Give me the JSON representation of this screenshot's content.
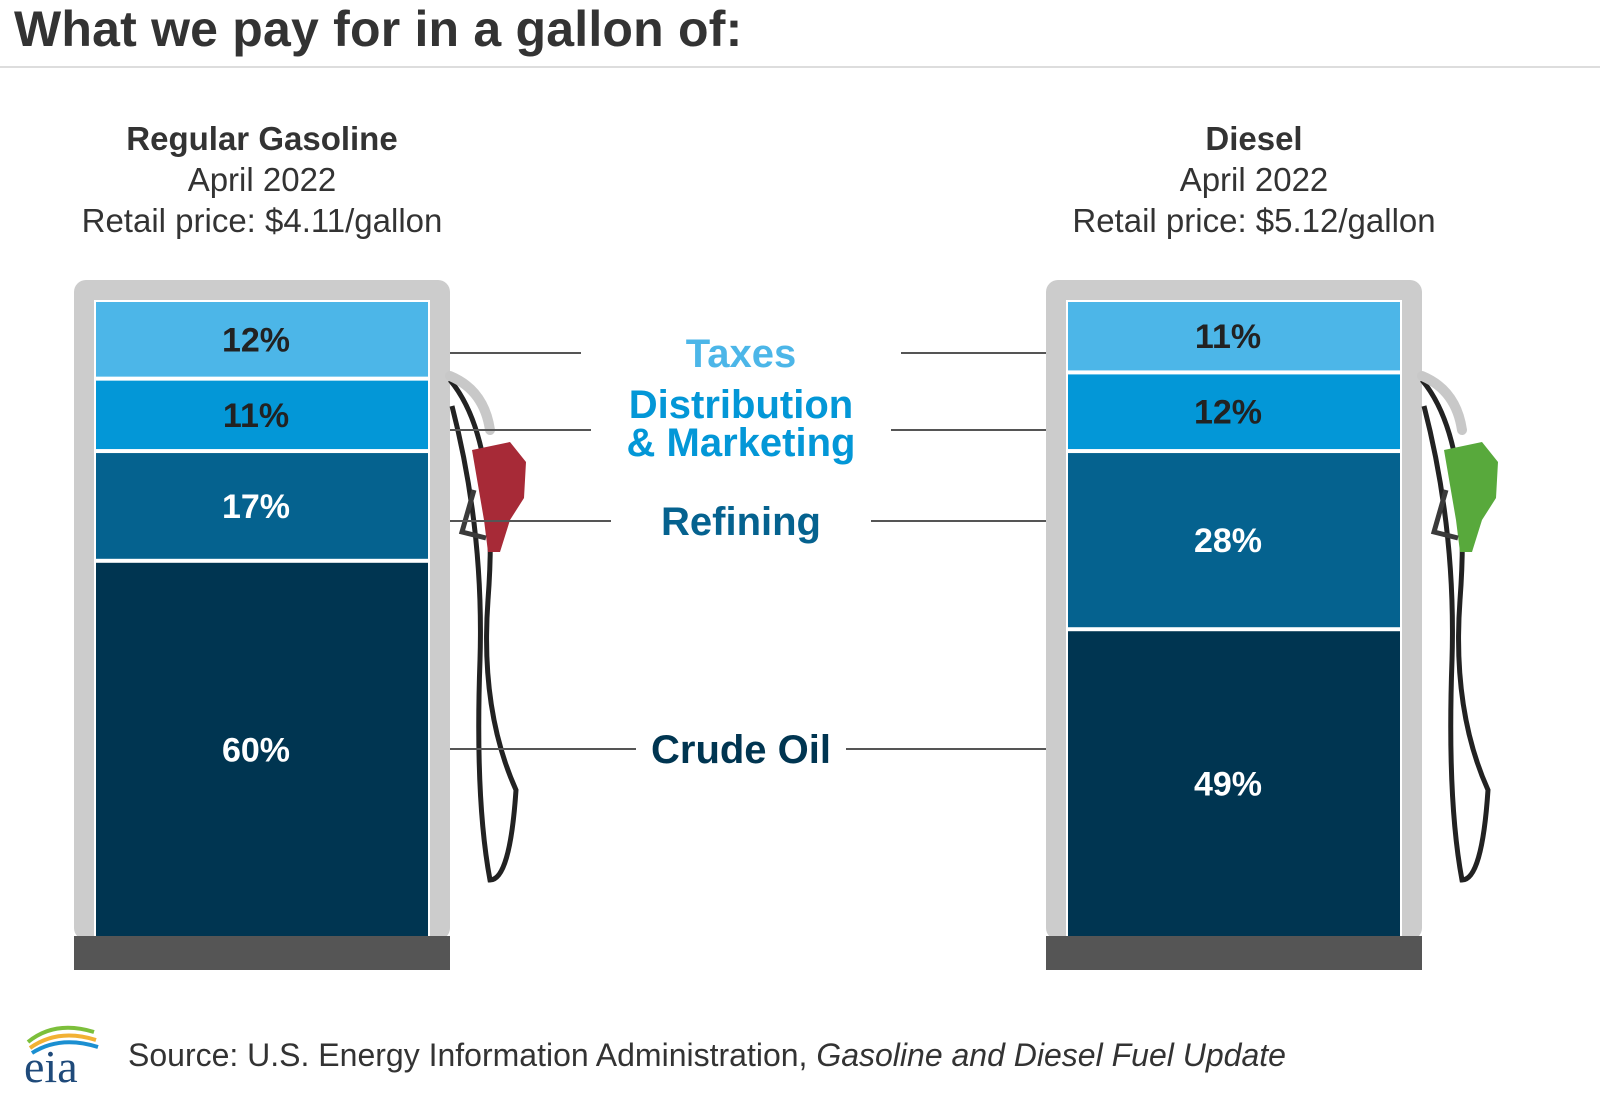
{
  "title": "What we pay for in a gallon of:",
  "colors": {
    "taxes": "#4cb6e8",
    "distribution": "#0397d7",
    "refining": "#05628f",
    "crude": "#003551",
    "pump_frame": "#cccccc",
    "pump_base": "#555555",
    "gas_nozzle": "#a72a37",
    "diesel_nozzle": "#58a93c"
  },
  "chart_data": {
    "type": "bar",
    "stacked": true,
    "title": "What we pay for in a gallon of:",
    "categories": [
      "Regular Gasoline",
      "Diesel"
    ],
    "components": [
      "Taxes",
      "Distribution & Marketing",
      "Refining",
      "Crude Oil"
    ],
    "series": [
      {
        "name": "Taxes",
        "values": [
          12,
          11
        ]
      },
      {
        "name": "Distribution & Marketing",
        "values": [
          11,
          12
        ]
      },
      {
        "name": "Refining",
        "values": [
          17,
          28
        ]
      },
      {
        "name": "Crude Oil",
        "values": [
          60,
          49
        ]
      }
    ],
    "unit": "%",
    "pumps": [
      {
        "name": "Regular Gasoline",
        "date": "April 2022",
        "price_text": "Retail price: $4.11/gallon",
        "segments": [
          {
            "component": "Taxes",
            "value": 12,
            "label": "12%"
          },
          {
            "component": "Distribution & Marketing",
            "value": 11,
            "label": "11%"
          },
          {
            "component": "Refining",
            "value": 17,
            "label": "17%"
          },
          {
            "component": "Crude Oil",
            "value": 60,
            "label": "60%"
          }
        ]
      },
      {
        "name": "Diesel",
        "date": "April 2022",
        "price_text": "Retail price: $5.12/gallon",
        "segments": [
          {
            "component": "Taxes",
            "value": 11,
            "label": "11%"
          },
          {
            "component": "Distribution & Marketing",
            "value": 12,
            "label": "12%"
          },
          {
            "component": "Refining",
            "value": 28,
            "label": "28%"
          },
          {
            "component": "Crude Oil",
            "value": 49,
            "label": "49%"
          }
        ]
      }
    ],
    "category_labels": {
      "taxes": "Taxes",
      "distribution_line1": "Distribution",
      "distribution_line2": "& Marketing",
      "refining": "Refining",
      "crude": "Crude Oil"
    }
  },
  "footer": {
    "logo_text": "eia",
    "source_prefix": "Source: U.S. Energy Information Administration, ",
    "source_title": "Gasoline and Diesel Fuel Update"
  }
}
